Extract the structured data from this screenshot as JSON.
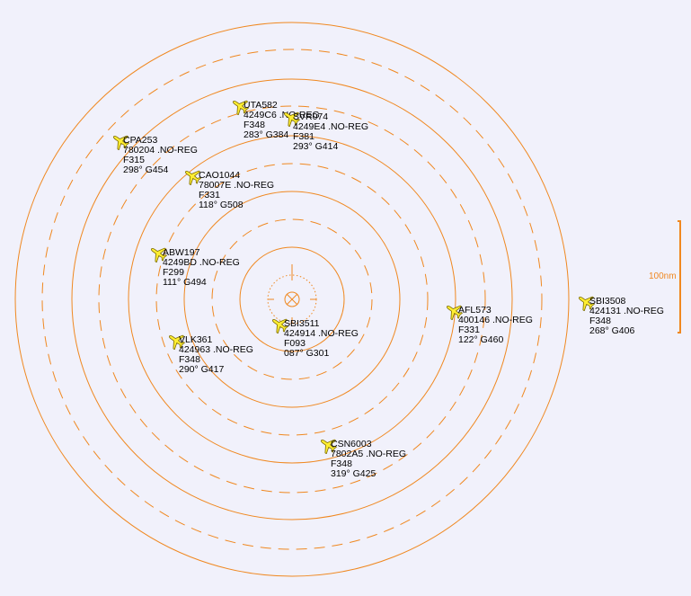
{
  "scale": {
    "label": "100nm"
  },
  "colors": {
    "ring": "#F08820",
    "aircraft_fill": "#FFEE33",
    "aircraft_stroke": "#7A6A00",
    "label_text": "#000000",
    "background": "#F1F1FB"
  },
  "aircraft": [
    {
      "callsign": "UTA582",
      "hex_reg": "4249C6 .NO-REG",
      "level": "F348",
      "track_speed": "283° G384"
    },
    {
      "callsign": "SVR074",
      "hex_reg": "4249E4 .NO-REG",
      "level": "F381",
      "track_speed": "293° G414"
    },
    {
      "callsign": "CPA253",
      "hex_reg": "780204 .NO-REG",
      "level": "F315",
      "track_speed": "298° G454"
    },
    {
      "callsign": "CAO1044",
      "hex_reg": "78007E .NO-REG",
      "level": "F331",
      "track_speed": "118° G508"
    },
    {
      "callsign": "ABW197",
      "hex_reg": "4249BD .NO-REG",
      "level": "F299",
      "track_speed": "111° G494"
    },
    {
      "callsign": "SBI3511",
      "hex_reg": "424914 .NO-REG",
      "level": "F093",
      "track_speed": "087° G301"
    },
    {
      "callsign": "VLK361",
      "hex_reg": "424963 .NO-REG",
      "level": "F348",
      "track_speed": "290° G417"
    },
    {
      "callsign": "AFL573",
      "hex_reg": "400146 .NO-REG",
      "level": "F331",
      "track_speed": "122° G460"
    },
    {
      "callsign": "SBI3508",
      "hex_reg": "424131 .NO-REG",
      "level": "F348",
      "track_speed": "268° G406"
    },
    {
      "callsign": "CSN6003",
      "hex_reg": "7802A5 .NO-REG",
      "level": "F348",
      "track_speed": "319° G425"
    }
  ]
}
